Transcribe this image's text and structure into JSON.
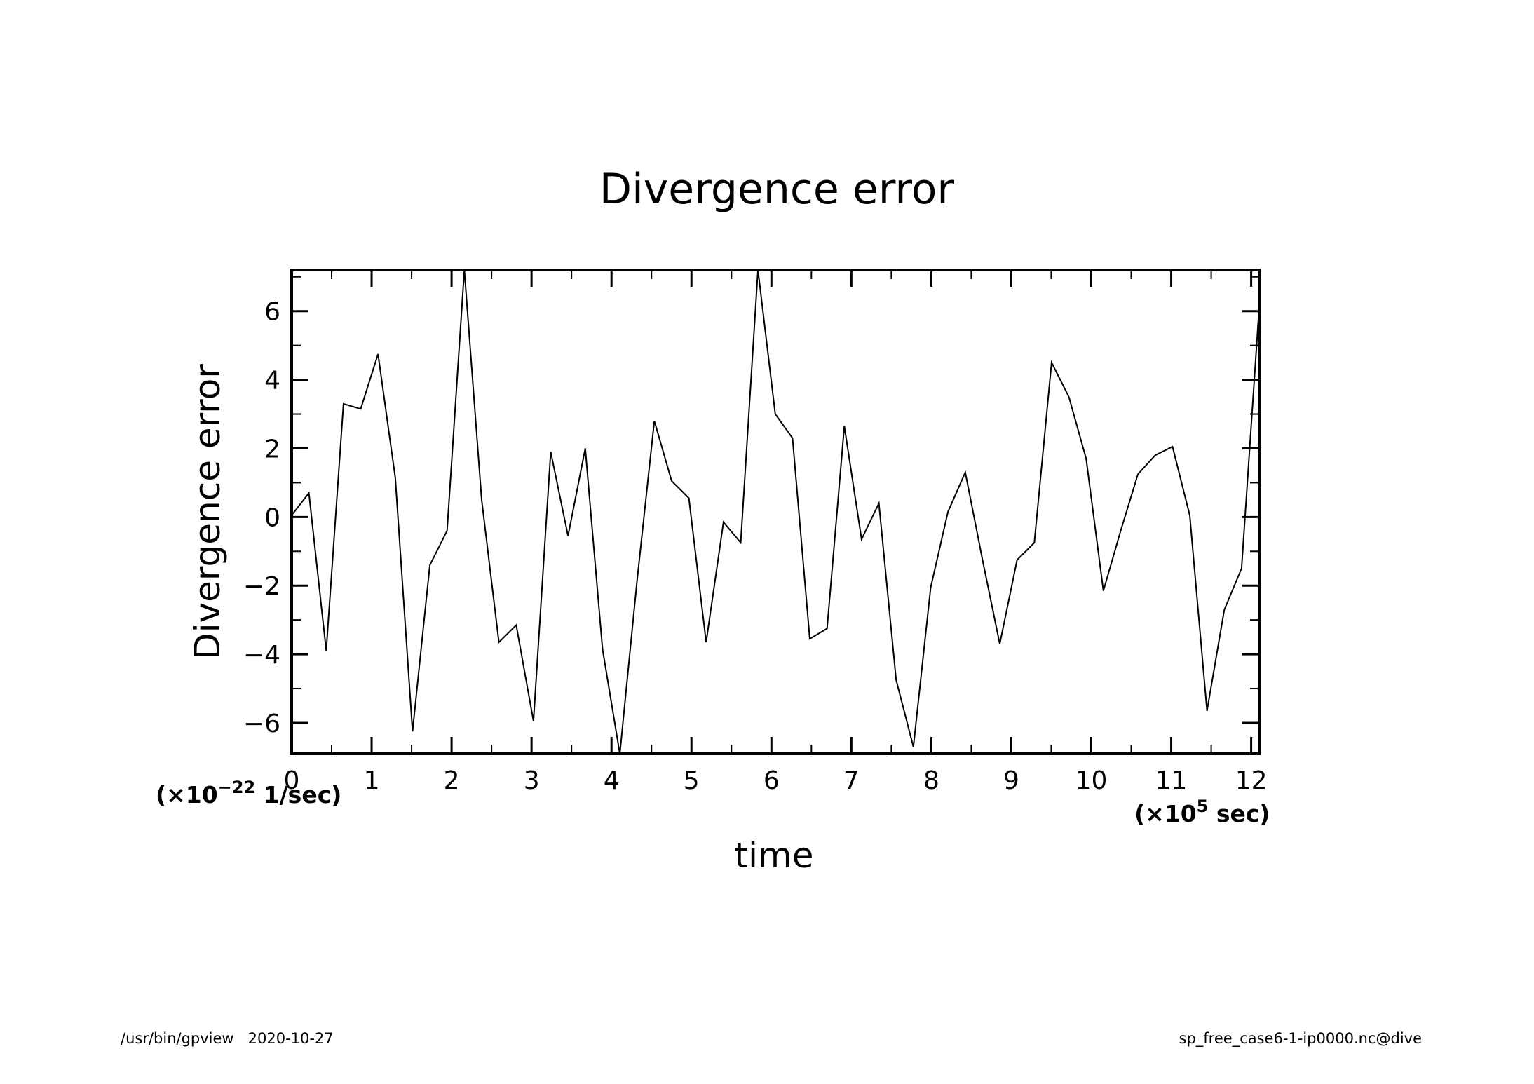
{
  "chart_data": {
    "type": "line",
    "title": "Divergence error",
    "xlabel": "time",
    "ylabel": "Divergence error",
    "x_unit_prefix": "(×10",
    "x_unit_exp": "5",
    "x_unit_suffix": " sec)",
    "y_unit_prefix": "(×10",
    "y_unit_exp": "−22",
    "y_unit_suffix": " 1/sec)",
    "xlim": [
      0,
      12.1
    ],
    "ylim": [
      -6.9,
      7.2
    ],
    "x_ticks": [
      0,
      1,
      2,
      3,
      4,
      5,
      6,
      7,
      8,
      9,
      10,
      11,
      12
    ],
    "x_minor_ticks": [
      0.5,
      1.5,
      2.5,
      3.5,
      4.5,
      5.5,
      6.5,
      7.5,
      8.5,
      9.5,
      10.5,
      11.5
    ],
    "y_ticks": [
      -6,
      -4,
      -2,
      0,
      2,
      4,
      6
    ],
    "y_tick_labels": [
      "−6",
      "−4",
      "−2",
      "0",
      "2",
      "4",
      "6"
    ],
    "y_minor_ticks": [
      -5,
      -3,
      -1,
      1,
      3,
      5,
      7
    ],
    "grid": false,
    "series": [
      {
        "x": [
          0,
          0.216,
          0.432,
          0.648,
          0.864,
          1.08,
          1.296,
          1.512,
          1.728,
          1.944,
          2.16,
          2.376,
          2.592,
          2.808,
          3.024,
          3.24,
          3.456,
          3.672,
          3.888,
          4.104,
          4.32,
          4.536,
          4.752,
          4.968,
          5.184,
          5.4,
          5.616,
          5.832,
          6.048,
          6.264,
          6.48,
          6.696,
          6.912,
          7.128,
          7.344,
          7.56,
          7.776,
          7.992,
          8.208,
          8.424,
          8.64,
          8.856,
          9.072,
          9.288,
          9.504,
          9.72,
          9.936,
          10.152,
          10.368,
          10.584,
          10.8,
          11.016,
          11.232,
          11.448,
          11.664,
          11.88,
          12.096
        ],
        "y": [
          0.05,
          0.7,
          -3.9,
          3.3,
          3.15,
          4.75,
          1.15,
          -6.25,
          -1.4,
          -0.4,
          7.2,
          0.5,
          -3.65,
          -3.15,
          -5.95,
          1.9,
          -0.55,
          2.0,
          -3.85,
          -6.9,
          -1.85,
          2.8,
          1.05,
          0.55,
          -3.65,
          -0.15,
          -0.75,
          7.2,
          3.0,
          2.3,
          -3.55,
          -3.25,
          2.65,
          -0.65,
          0.4,
          -4.75,
          -6.7,
          -2.05,
          0.15,
          1.3,
          -1.25,
          -3.7,
          -1.25,
          -0.75,
          4.5,
          3.5,
          1.7,
          -2.15,
          -0.4,
          1.25,
          1.8,
          2.05,
          0.05,
          -5.65,
          -2.7,
          -1.5,
          5.95
        ]
      }
    ]
  },
  "footer": {
    "left": "/usr/bin/gpview   2020-10-27",
    "right": "sp_free_case6-1-ip0000.nc@dive"
  }
}
